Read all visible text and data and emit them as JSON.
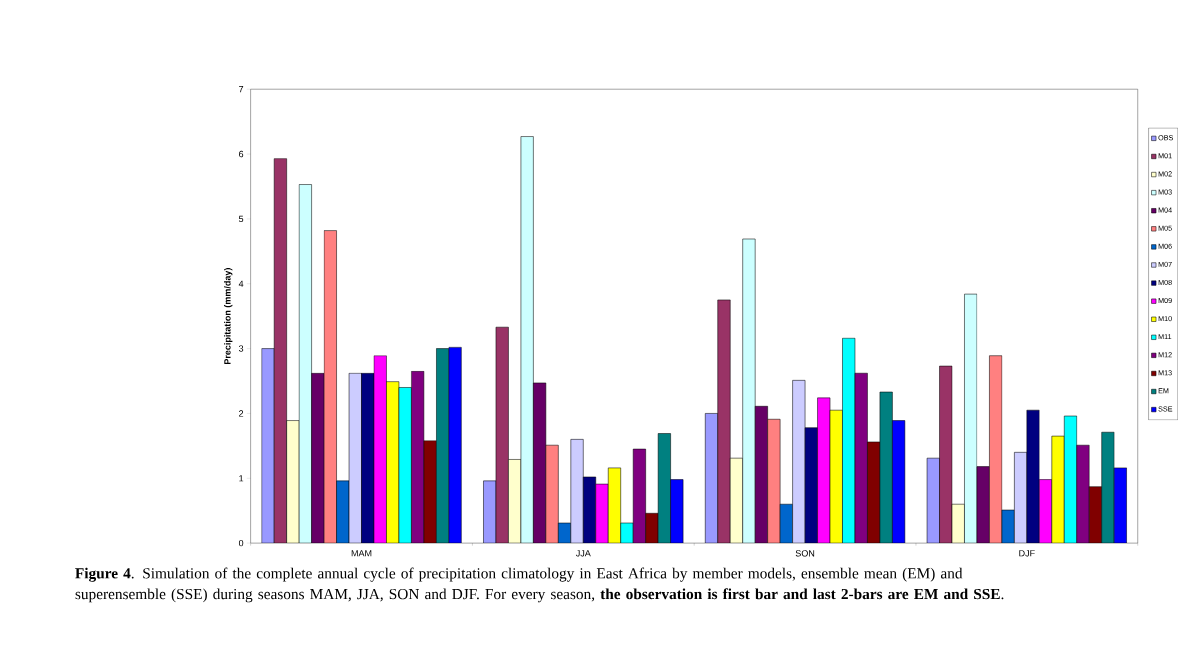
{
  "chart_data": {
    "type": "bar",
    "ylabel": "Precipitation (mm/day)",
    "categories": [
      "MAM",
      "JJA",
      "SON",
      "DJF"
    ],
    "series": [
      {
        "name": "OBS",
        "color": "#9999ff",
        "values": [
          3.0,
          0.96,
          2.0,
          1.31
        ]
      },
      {
        "name": "M01",
        "color": "#993366",
        "values": [
          5.93,
          3.33,
          3.75,
          2.73
        ]
      },
      {
        "name": "M02",
        "color": "#ffffcc",
        "values": [
          1.89,
          1.29,
          1.31,
          0.6
        ]
      },
      {
        "name": "M03",
        "color": "#ccffff",
        "values": [
          5.53,
          6.27,
          4.69,
          3.84
        ]
      },
      {
        "name": "M04",
        "color": "#660066",
        "values": [
          2.62,
          2.47,
          2.11,
          1.18
        ]
      },
      {
        "name": "M05",
        "color": "#ff8080",
        "values": [
          4.82,
          1.51,
          1.91,
          2.89
        ]
      },
      {
        "name": "M06",
        "color": "#0066cc",
        "values": [
          0.96,
          0.31,
          0.6,
          0.51
        ]
      },
      {
        "name": "M07",
        "color": "#ccccff",
        "values": [
          2.62,
          1.6,
          2.51,
          1.4
        ]
      },
      {
        "name": "M08",
        "color": "#000080",
        "values": [
          2.62,
          1.02,
          1.78,
          2.05
        ]
      },
      {
        "name": "M09",
        "color": "#ff00ff",
        "values": [
          2.89,
          0.91,
          2.24,
          0.98
        ]
      },
      {
        "name": "M10",
        "color": "#ffff00",
        "values": [
          2.49,
          1.16,
          2.05,
          1.65
        ]
      },
      {
        "name": "M11",
        "color": "#00ffff",
        "values": [
          2.4,
          0.31,
          3.16,
          1.96
        ]
      },
      {
        "name": "M12",
        "color": "#800080",
        "values": [
          2.65,
          1.45,
          2.62,
          1.51
        ]
      },
      {
        "name": "M13",
        "color": "#800000",
        "values": [
          1.58,
          0.46,
          1.56,
          0.87
        ]
      },
      {
        "name": "EM",
        "color": "#008080",
        "values": [
          3.0,
          1.69,
          2.33,
          1.71
        ]
      },
      {
        "name": "SSE",
        "color": "#0000ff",
        "values": [
          3.02,
          0.98,
          1.89,
          1.16
        ]
      }
    ],
    "ylim": [
      0,
      7
    ],
    "yticks": [
      0,
      1,
      2,
      3,
      4,
      5,
      6,
      7
    ],
    "legend": "right",
    "annotations": [
      "**Figure 4**. Simulation of the complete annual cycle of precipitation climatology in East Africa by member models, ensemble mean (EM) and superensemble (SSE) during seasons MAM, JJA, SON and DJF. For every season, **the observation is first bar and last 2-bars are EM and SSE**."
    ]
  }
}
